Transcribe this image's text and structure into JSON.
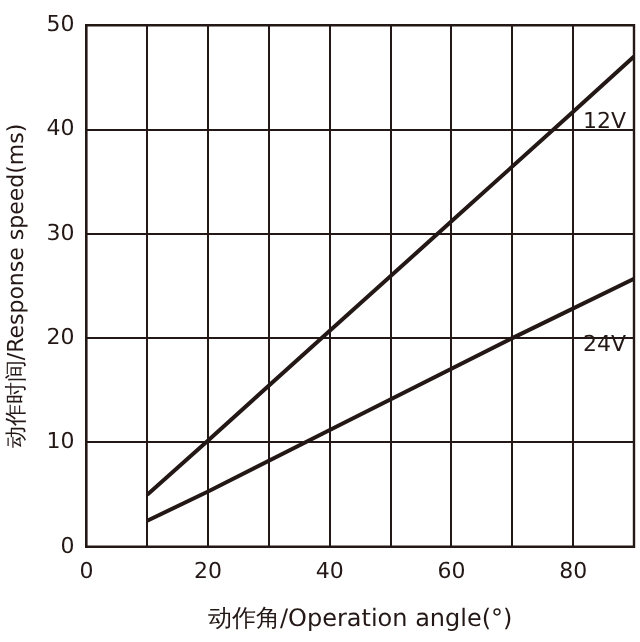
{
  "chart_data": {
    "type": "line",
    "xlabel": "动作角/Operation angle(°)",
    "ylabel": "动作时间/Response speed(ms)",
    "xlim": [
      0,
      90
    ],
    "xticks": [
      0,
      {
        "value": 10,
        "label": null
      },
      20,
      {
        "value": 30,
        "label": null
      },
      40,
      {
        "value": 50,
        "label": null
      },
      60,
      {
        "value": 70,
        "label": null
      },
      80
    ],
    "ylim": [
      0,
      50
    ],
    "yticks": [
      0,
      10,
      20,
      30,
      40,
      50
    ],
    "grid": true,
    "legend": false,
    "marker": "none",
    "line_style": "solid",
    "series": [
      {
        "name": "12V",
        "color": "#231815",
        "x": [
          10,
          20,
          40,
          60,
          80,
          90
        ],
        "values": [
          5,
          10.2,
          20.7,
          31.2,
          41.7,
          47
        ]
      },
      {
        "name": "24V",
        "color": "#231815",
        "x": [
          10,
          20,
          40,
          70,
          90
        ],
        "values": [
          2.5,
          5.3,
          11.2,
          20,
          25.7
        ]
      }
    ]
  }
}
